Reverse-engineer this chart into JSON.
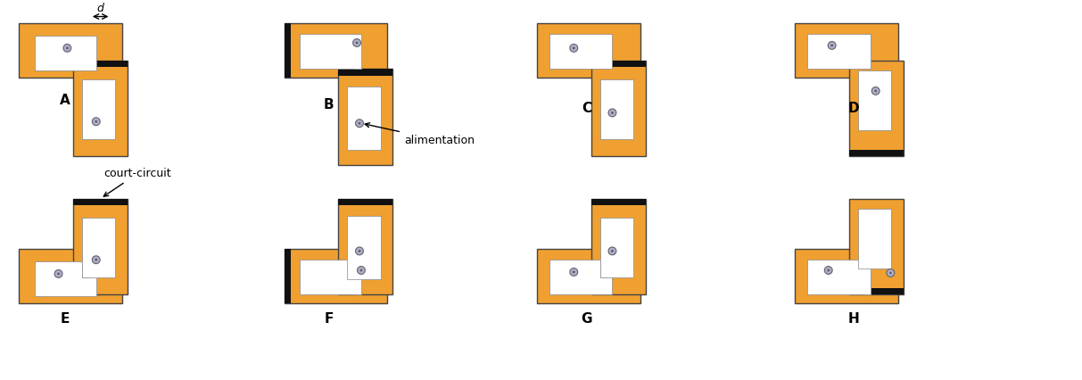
{
  "patch_color": "#F0A030",
  "patch_border": "#444444",
  "slot_color": "#FFFFFF",
  "short_color": "#111111",
  "feed_outer": "#B0B0C8",
  "feed_inner": "#606070",
  "bg_color": "#FFFFFF",
  "strip_thick": 8,
  "lw": 1.0,
  "slot_lw": 0.5,
  "feed_r": 4.5,
  "configs": [
    "A",
    "B",
    "C",
    "D",
    "E",
    "F",
    "G",
    "H"
  ]
}
